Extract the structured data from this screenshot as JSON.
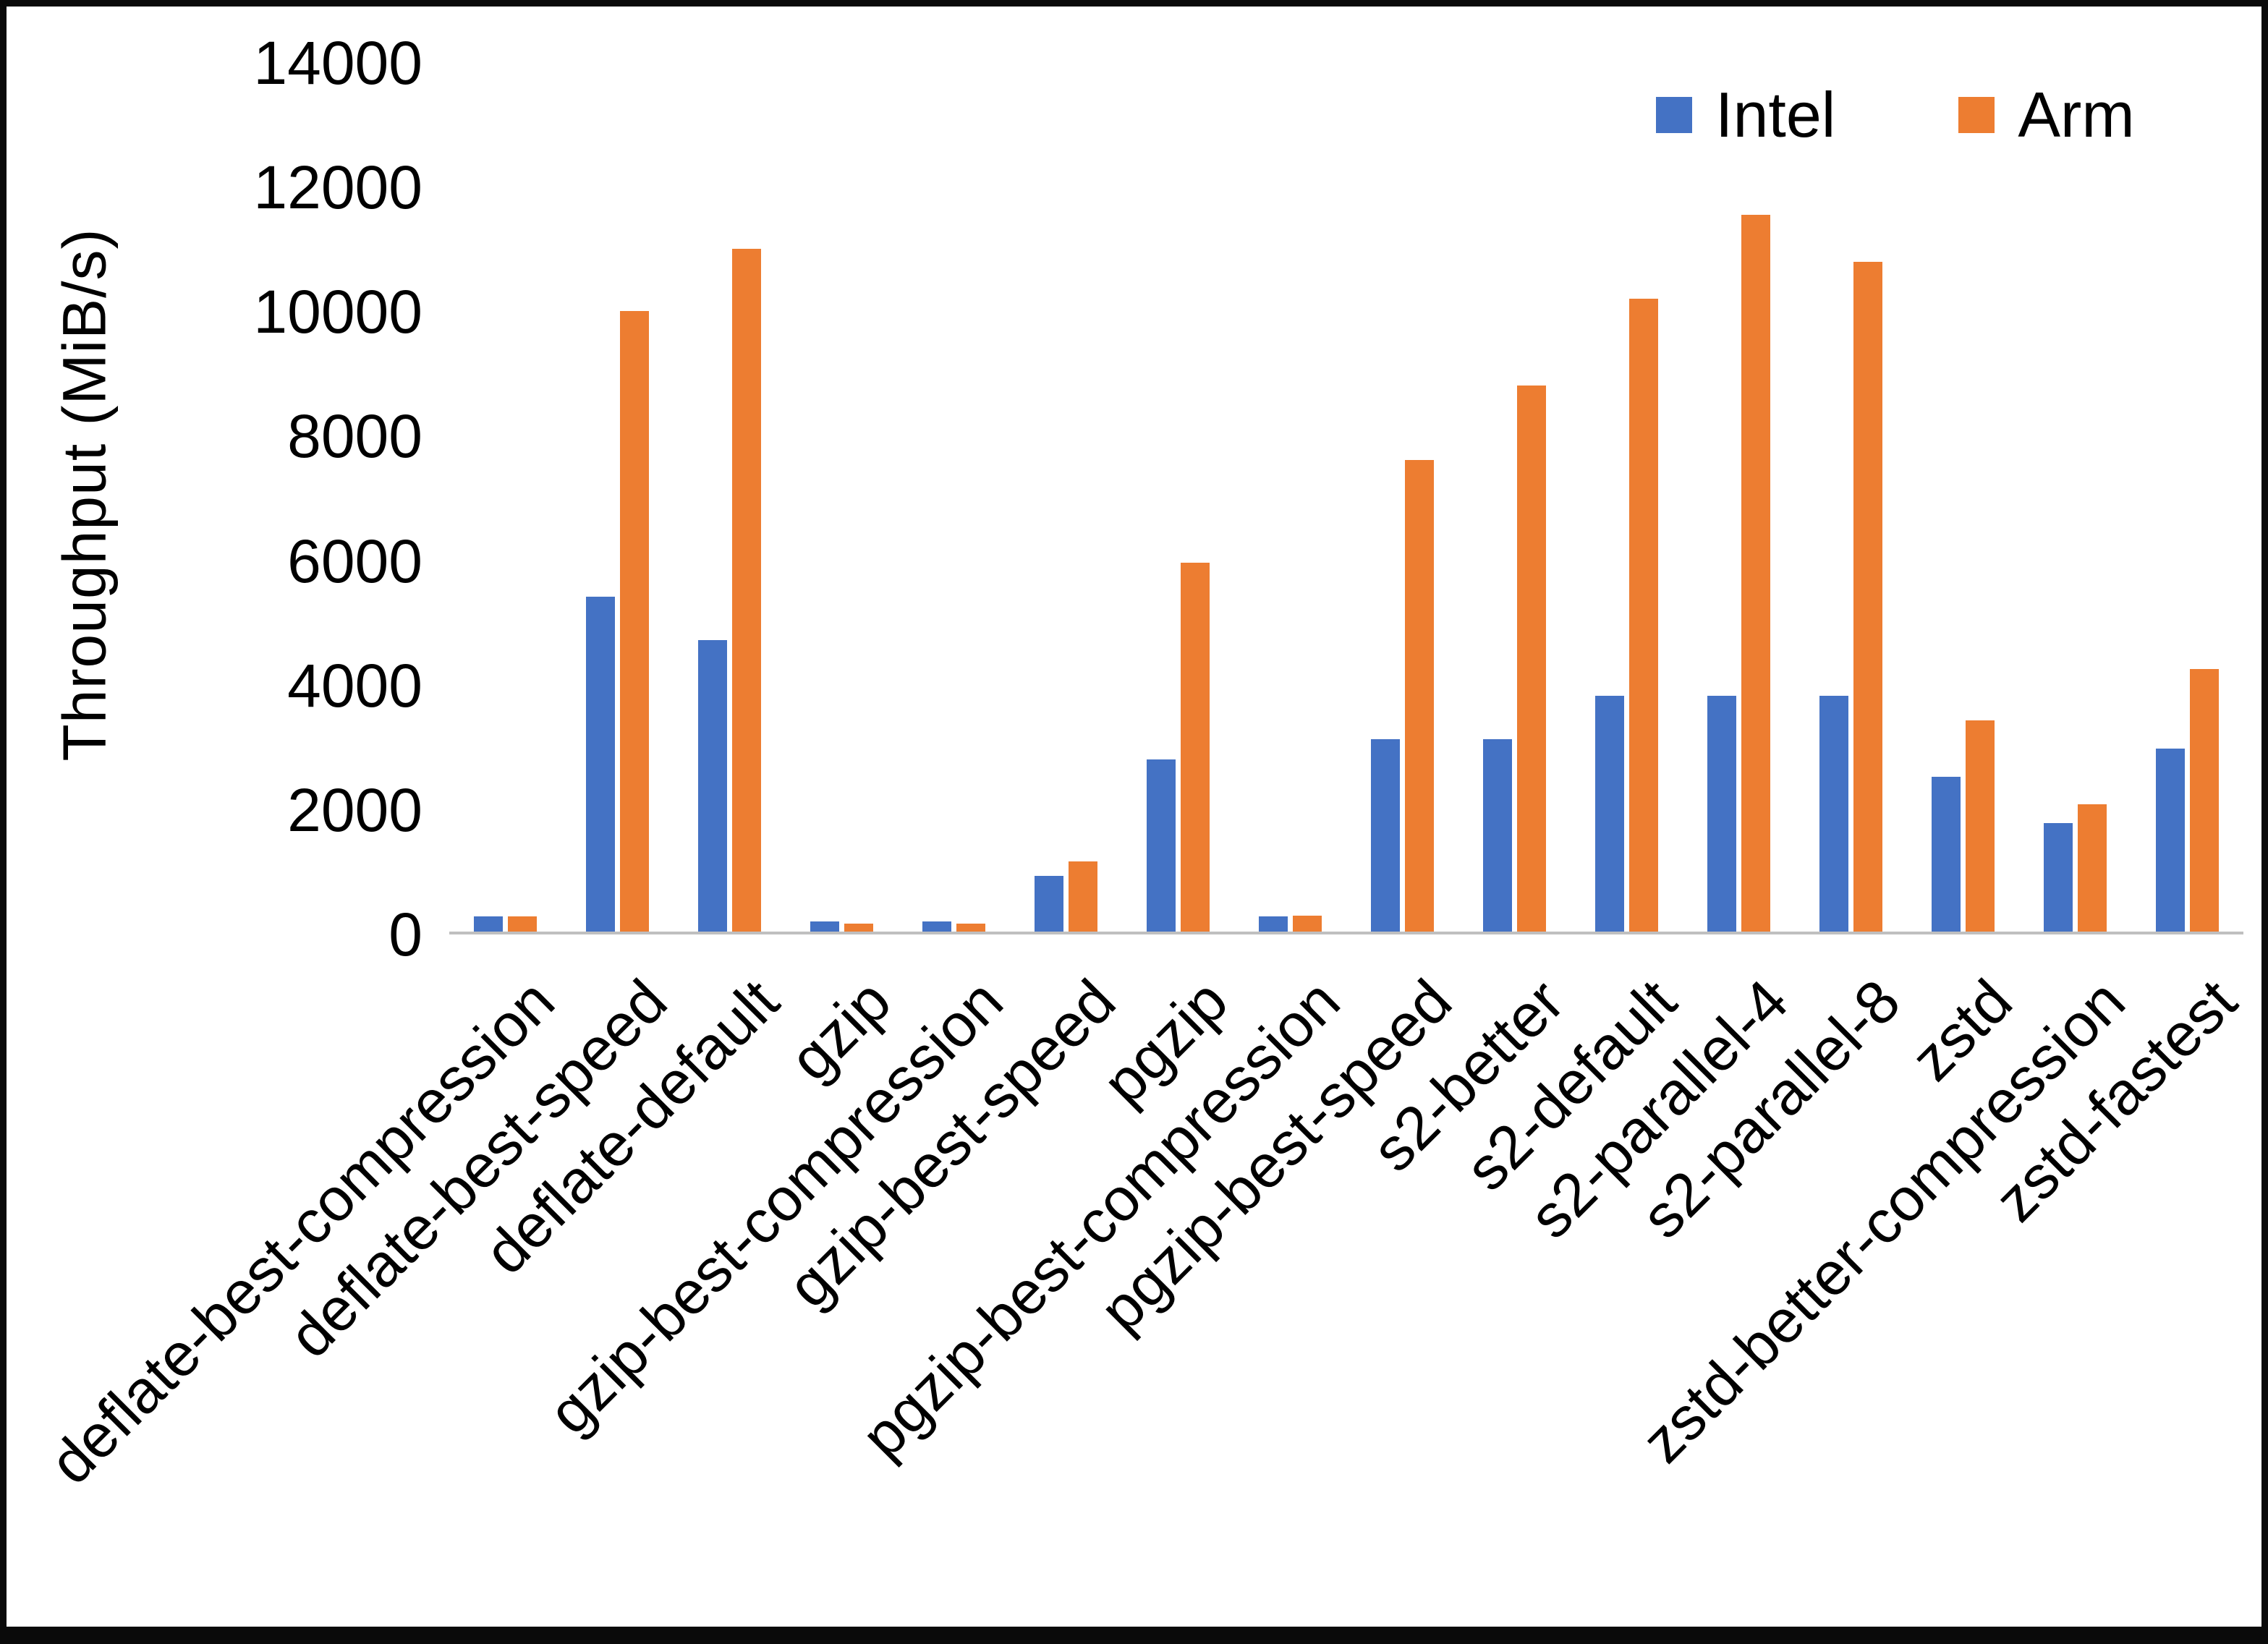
{
  "chart_data": {
    "type": "bar",
    "title": "",
    "ylabel": "Throughput (MiB/s)",
    "xlabel": "",
    "ylim": [
      0,
      14000
    ],
    "ytick_step": 2000,
    "grid": false,
    "legend_position": "top-right",
    "categories": [
      "deflate-best-compression",
      "deflate-best-speed",
      "deflate-default",
      "gzip",
      "gzip-best-compression",
      "gzip-best-speed",
      "pgzip",
      "pgzip-best-compression",
      "pgzip-best-speed",
      "s2-better",
      "s2-default",
      "s2-parallel-4",
      "s2-parallel-8",
      "zstd",
      "zstd-better-compression",
      "zstd-fastest"
    ],
    "series": [
      {
        "name": "Intel",
        "color": "#4472C4",
        "values": [
          250,
          5400,
          4700,
          160,
          160,
          900,
          2780,
          250,
          3100,
          3100,
          3800,
          3800,
          3800,
          2500,
          1750,
          2950
        ]
      },
      {
        "name": "Arm",
        "color": "#ED7D31",
        "values": [
          250,
          10000,
          11000,
          130,
          130,
          1130,
          5950,
          260,
          7600,
          8800,
          10200,
          11550,
          10800,
          3400,
          2050,
          4230
        ]
      }
    ]
  }
}
